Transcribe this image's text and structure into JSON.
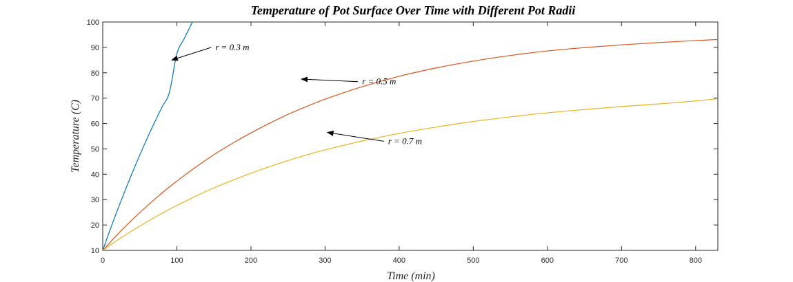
{
  "chart_data": {
    "type": "line",
    "title": "Temperature of Pot Surface Over Time with Different Pot Radii",
    "xlabel": "Time (min)",
    "ylabel": "Temperature (C)",
    "xlim": [
      0,
      830
    ],
    "ylim": [
      10,
      100
    ],
    "xticks": [
      0,
      100,
      200,
      300,
      400,
      500,
      600,
      700,
      800
    ],
    "yticks": [
      10,
      20,
      30,
      40,
      50,
      60,
      70,
      80,
      90,
      100
    ],
    "grid": false,
    "series": [
      {
        "color": "#0072BD",
        "x": [
          0,
          10,
          20,
          30,
          40,
          50,
          60,
          70,
          80,
          90,
          100,
          110,
          121
        ],
        "y": [
          10,
          18.2,
          26.0,
          33.5,
          40.7,
          47.6,
          54.2,
          60.5,
          66.5,
          72.3,
          87.5,
          93.5,
          100
        ]
      },
      {
        "color": "#D95319",
        "x": [
          0,
          25,
          50,
          75,
          100,
          125,
          150,
          175,
          200,
          225,
          250,
          275,
          300,
          350,
          400,
          450,
          500,
          550,
          600,
          650,
          700,
          750,
          800,
          830
        ],
        "y": [
          10,
          17.8,
          24.9,
          31.4,
          37.3,
          42.7,
          47.7,
          52.2,
          56.3,
          60.1,
          63.6,
          66.7,
          69.6,
          74.5,
          78.6,
          81.9,
          84.6,
          86.8,
          88.6,
          89.9,
          91.0,
          91.9,
          92.7,
          93.1
        ]
      },
      {
        "color": "#EDB120",
        "x": [
          0,
          25,
          50,
          75,
          100,
          125,
          150,
          175,
          200,
          225,
          250,
          275,
          300,
          350,
          400,
          450,
          500,
          550,
          600,
          650,
          700,
          750,
          800,
          830
        ],
        "y": [
          10,
          15.0,
          19.6,
          23.8,
          27.7,
          31.3,
          34.6,
          37.6,
          40.4,
          43.0,
          45.4,
          47.6,
          49.6,
          53.1,
          56.1,
          58.6,
          60.8,
          62.6,
          64.2,
          65.5,
          66.7,
          67.7,
          68.9,
          69.8
        ]
      }
    ],
    "annotations": [
      {
        "text": "r = 0.3 m",
        "point_x": 93,
        "point_y": 85,
        "text_x": 152,
        "text_y": 90
      },
      {
        "text": "r = 0.5 m",
        "point_x": 268,
        "point_y": 77.5,
        "text_x": 350,
        "text_y": 76.5
      },
      {
        "text": "r = 0.7 m",
        "point_x": 303,
        "point_y": 56.5,
        "text_x": 385,
        "text_y": 53
      }
    ]
  }
}
